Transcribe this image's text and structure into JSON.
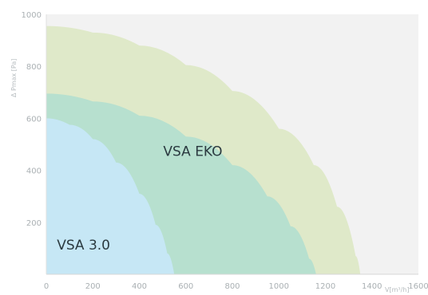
{
  "chart_data": {
    "type": "area",
    "title": "",
    "xlabel": "V[m³/h]",
    "ylabel": "Δ Pmax [Pa]",
    "xlim": [
      0,
      1600
    ],
    "ylim": [
      0,
      1000
    ],
    "x_ticks": [
      "0",
      "200",
      "400",
      "600",
      "800",
      "1000",
      "1200",
      "1400",
      "1600"
    ],
    "y_ticks": [
      "200",
      "400",
      "600",
      "800",
      "1000"
    ],
    "grid": false,
    "colors": {
      "plot_background": "#f2f2f2",
      "vsa_eko": "#dfe9c9",
      "middle_band": "#b7e0cf",
      "vsa_30": "#c6e7f5"
    },
    "series": [
      {
        "name": "VSA EKO",
        "type": "area",
        "points": [
          [
            0,
            955
          ],
          [
            200,
            930
          ],
          [
            400,
            880
          ],
          [
            600,
            805
          ],
          [
            800,
            705
          ],
          [
            1000,
            560
          ],
          [
            1150,
            420
          ],
          [
            1250,
            260
          ],
          [
            1330,
            70
          ],
          [
            1350,
            0
          ]
        ]
      },
      {
        "type": "area",
        "points": [
          [
            0,
            695
          ],
          [
            200,
            665
          ],
          [
            400,
            610
          ],
          [
            600,
            530
          ],
          [
            800,
            420
          ],
          [
            950,
            300
          ],
          [
            1050,
            185
          ],
          [
            1130,
            60
          ],
          [
            1160,
            0
          ]
        ]
      },
      {
        "name": "VSA 3.0",
        "type": "area",
        "points": [
          [
            0,
            600
          ],
          [
            100,
            575
          ],
          [
            200,
            520
          ],
          [
            300,
            430
          ],
          [
            400,
            310
          ],
          [
            470,
            190
          ],
          [
            520,
            80
          ],
          [
            550,
            0
          ]
        ]
      }
    ],
    "annotations": [
      {
        "text": "VSA EKO",
        "x": 630,
        "y": 455
      },
      {
        "text": "VSA 3.0",
        "x": 160,
        "y": 95
      }
    ]
  }
}
